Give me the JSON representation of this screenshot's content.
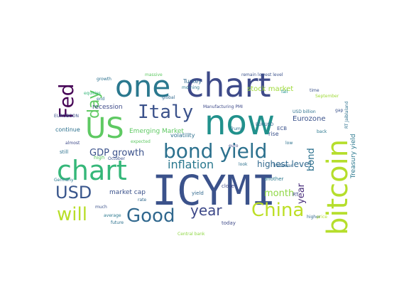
{
  "wordcloud": {
    "words": [
      {
        "text": "ICYMI",
        "color": "#3b528b"
      },
      {
        "text": "now",
        "color": "#21918c"
      },
      {
        "text": "chart",
        "color": "#3e4a89"
      },
      {
        "text": "one",
        "color": "#2a788e"
      },
      {
        "text": "bitcoin",
        "color": "#b5de2b"
      },
      {
        "text": "US",
        "color": "#5ec962"
      },
      {
        "text": "chart",
        "color": "#35b779"
      },
      {
        "text": "bond yield",
        "color": "#2c718e"
      },
      {
        "text": "Fed",
        "color": "#440154"
      },
      {
        "text": "Italy",
        "color": "#3b528b"
      },
      {
        "text": "China",
        "color": "#bddf26"
      },
      {
        "text": "Good",
        "color": "#31688e"
      },
      {
        "text": "USD",
        "color": "#39568c"
      },
      {
        "text": "will",
        "color": "#b8de29"
      },
      {
        "text": "day",
        "color": "#5ec962"
      },
      {
        "text": "year",
        "color": "#3e4989"
      },
      {
        "text": "inflation",
        "color": "#2a788e"
      },
      {
        "text": "GDP growth",
        "color": "#3b528b"
      },
      {
        "text": "highest level",
        "color": "#31688e"
      },
      {
        "text": "month",
        "color": "#8fd744"
      },
      {
        "text": "bond",
        "color": "#2c718e"
      },
      {
        "text": "year",
        "color": "#472c7a"
      },
      {
        "text": "stock market",
        "color": "#9fda3a"
      },
      {
        "text": "Eurozone",
        "color": "#3b528b"
      },
      {
        "text": "Emerging Market",
        "color": "#5ec962"
      },
      {
        "text": "market cap",
        "color": "#3b528b"
      },
      {
        "text": "volatility",
        "color": "#2d708e"
      },
      {
        "text": "Treasury yield",
        "color": "#2a788e"
      },
      {
        "text": "recession",
        "color": "#3e4a89"
      },
      {
        "text": "continue",
        "color": "#2c718e"
      },
      {
        "text": "Turkey",
        "color": "#31688e"
      },
      {
        "text": "Manufacturing PMI",
        "color": "#3e4a89"
      },
      {
        "text": "remain lowest level",
        "color": "#3b528b"
      },
      {
        "text": "massive",
        "color": "#5ec962"
      },
      {
        "text": "growth",
        "color": "#2c718e"
      },
      {
        "text": "equities",
        "color": "#35b779"
      },
      {
        "text": "expected",
        "color": "#5ec962"
      },
      {
        "text": "another",
        "color": "#2a788e"
      },
      {
        "text": "rise",
        "color": "#3b528b"
      },
      {
        "text": "close",
        "color": "#3e4989"
      },
      {
        "text": "yield",
        "color": "#31688e"
      },
      {
        "text": "USD billion",
        "color": "#2c718e"
      },
      {
        "text": "September",
        "color": "#a0da39"
      },
      {
        "text": "time",
        "color": "#3b528b"
      },
      {
        "text": "fall",
        "color": "#21918c"
      },
      {
        "text": "Central bank",
        "color": "#8fd744"
      },
      {
        "text": "today",
        "color": "#3e4a89"
      },
      {
        "text": "future",
        "color": "#2c718e"
      },
      {
        "text": "average",
        "color": "#2a788e"
      },
      {
        "text": "much",
        "color": "#3b528b"
      },
      {
        "text": "rate",
        "color": "#31688e"
      },
      {
        "text": "still",
        "color": "#2c718e"
      },
      {
        "text": "almost",
        "color": "#3e4a89"
      },
      {
        "text": "Germany",
        "color": "#2a788e"
      },
      {
        "text": "high",
        "color": "#5ec962"
      },
      {
        "text": "October",
        "color": "#3b528b"
      },
      {
        "text": "look",
        "color": "#2c718e"
      },
      {
        "text": "TradeWar",
        "color": "#31688e"
      },
      {
        "text": "ECB",
        "color": "#3b528b"
      },
      {
        "text": "RT",
        "color": "#3e4a89"
      },
      {
        "text": "low",
        "color": "#2c718e"
      },
      {
        "text": "higher",
        "color": "#31688e"
      },
      {
        "text": "price",
        "color": "#b5de2b"
      },
      {
        "text": "back",
        "color": "#2a788e"
      },
      {
        "text": "gap",
        "color": "#3b528b"
      },
      {
        "text": "end",
        "color": "#2c718e"
      },
      {
        "text": "global",
        "color": "#31688e"
      },
      {
        "text": "morning",
        "color": "#2a788e"
      },
      {
        "text": "Trump",
        "color": "#2c718e"
      },
      {
        "text": "euro",
        "color": "#3e4a89"
      },
      {
        "text": "EUROBOON",
        "color": "#3b528b"
      },
      {
        "text": "EURUSD",
        "color": "#31688e"
      },
      {
        "text": "RT Jaiblaland",
        "color": "#2c718e"
      }
    ]
  }
}
